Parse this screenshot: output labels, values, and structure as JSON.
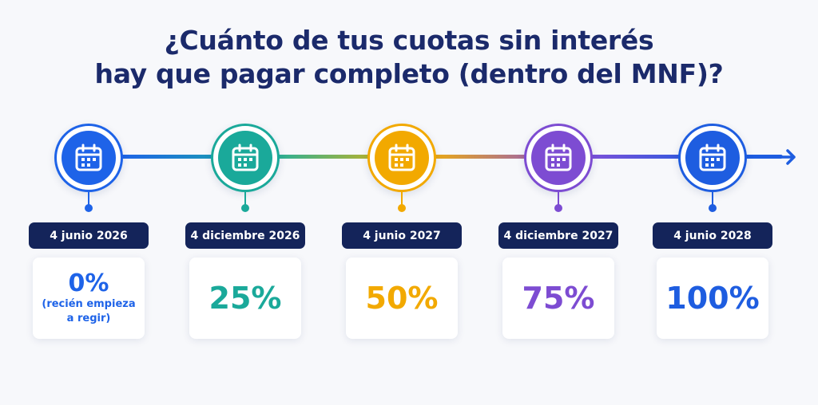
{
  "title": {
    "line1": "¿Cuánto de tus cuotas sin interés",
    "line2": "hay que pagar completo (dentro del MNF)?"
  },
  "steps": [
    {
      "date": "4 junio 2026",
      "percent": "0%",
      "note_line1": "(recién empieza",
      "note_line2": "a regir)",
      "color": "#1e63e8",
      "icon": "calendar-icon"
    },
    {
      "date": "4 diciembre 2026",
      "percent": "25%",
      "color": "#1aa99a",
      "icon": "calendar-icon"
    },
    {
      "date": "4 junio 2027",
      "percent": "50%",
      "color": "#f2a900",
      "icon": "calendar-icon"
    },
    {
      "date": "4 diciembre 2027",
      "percent": "75%",
      "color": "#7d4cd2",
      "icon": "calendar-icon"
    },
    {
      "date": "4 junio 2028",
      "percent": "100%",
      "color": "#1e5de0",
      "icon": "calendar-icon"
    }
  ],
  "colors": {
    "title": "#1b2a6b",
    "pill": "#14245a",
    "background": "#f7f8fb"
  }
}
